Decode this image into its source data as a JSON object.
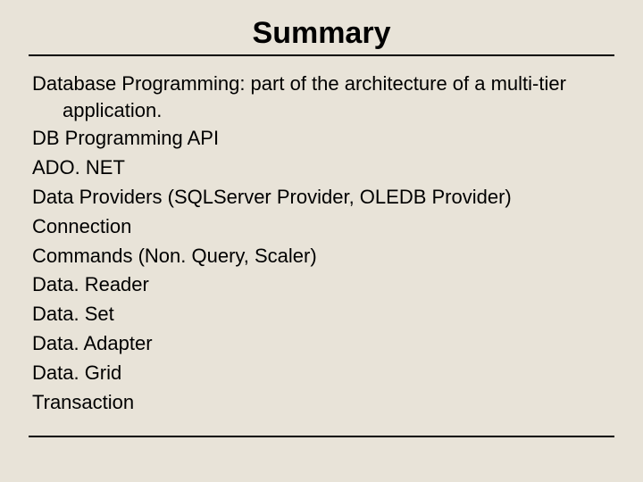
{
  "background_color": "#e8e3d8",
  "text_color": "#000000",
  "rule_color": "#000000",
  "title": {
    "text": "Summary",
    "fontsize": 34,
    "fontweight": "bold"
  },
  "body": {
    "fontsize": 22,
    "lead": "Database Programming: part of the architecture of a multi-tier application.",
    "items": [
      "DB Programming API",
      "ADO. NET",
      "Data Providers (SQLServer Provider, OLEDB Provider)",
      "Connection",
      "Commands (Non. Query, Scaler)",
      "Data. Reader",
      "Data. Set",
      "Data. Adapter",
      "Data. Grid",
      "Transaction"
    ]
  }
}
